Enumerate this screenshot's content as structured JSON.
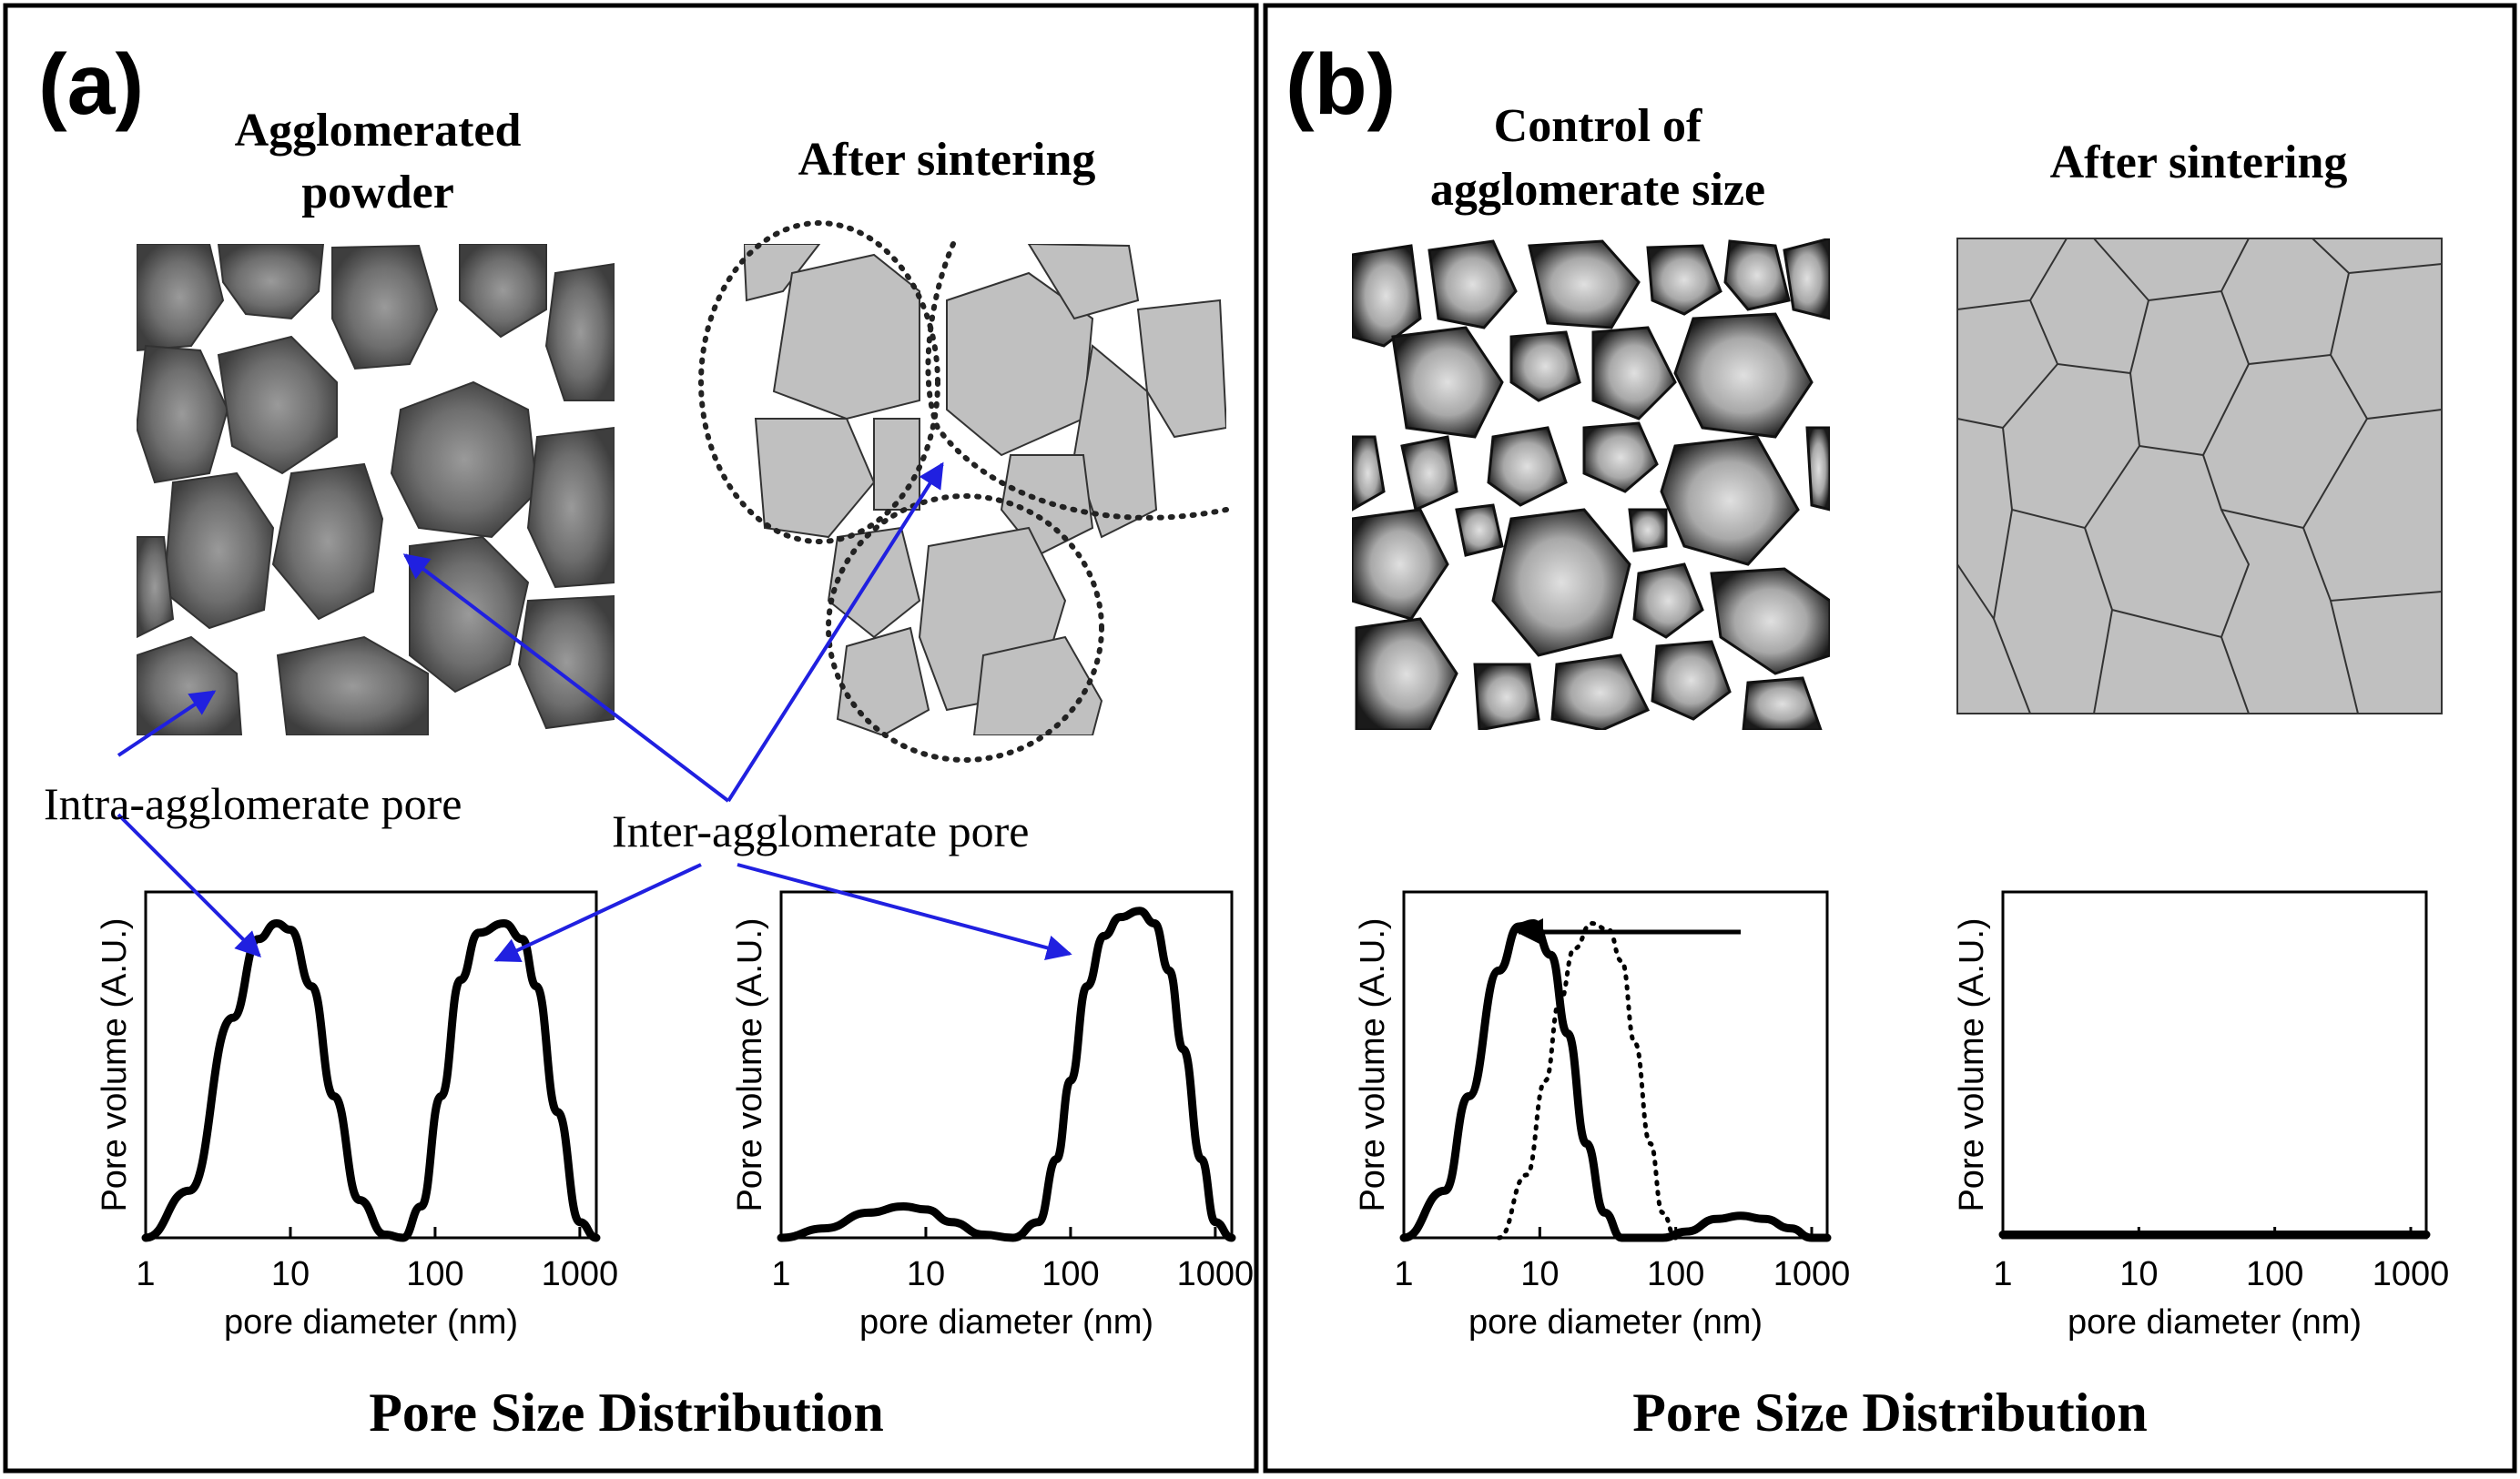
{
  "panel_a": {
    "label": "(a)",
    "title_left_line1": "Agglomerated",
    "title_left_line2": "powder",
    "title_right": "After sintering",
    "annotation_intra": "Intra-agglomerate pore",
    "annotation_inter": "Inter-agglomerate pore",
    "footer": "Pore Size Distribution"
  },
  "panel_b": {
    "label": "(b)",
    "title_left_line1": "Control of",
    "title_left_line2": "agglomerate size",
    "title_right": "After sintering",
    "footer": "Pore Size Distribution"
  },
  "colors": {
    "arrow": "#2020e0",
    "particle_dark": "#5a5a5a",
    "particle_light": "#bdbdbd",
    "grain": "#c0c0c0"
  },
  "chart_data": [
    {
      "id": "a-left",
      "type": "line",
      "ylabel": "Pore volume (A.U.)",
      "xlabel": "pore diameter (nm)",
      "xscale": "log",
      "xlim": [
        1,
        1300
      ],
      "ylim": [
        0,
        1.1
      ],
      "xticks": [
        "1",
        "10",
        "100",
        "1000"
      ],
      "series": [
        {
          "style": "solid",
          "x": [
            1,
            2,
            4,
            6,
            8,
            10,
            14,
            20,
            30,
            45,
            60,
            80,
            110,
            150,
            200,
            300,
            400,
            500,
            700,
            1000,
            1300
          ],
          "y": [
            0,
            0.15,
            0.7,
            0.95,
            1.0,
            0.98,
            0.8,
            0.45,
            0.12,
            0.01,
            0.0,
            0.1,
            0.45,
            0.82,
            0.97,
            1.0,
            0.95,
            0.8,
            0.4,
            0.05,
            0
          ]
        }
      ]
    },
    {
      "id": "a-right",
      "type": "line",
      "ylabel": "Pore volume (A.U.)",
      "xlabel": "pore diameter (nm)",
      "xscale": "log",
      "xlim": [
        1,
        1300
      ],
      "ylim": [
        0,
        1.1
      ],
      "xticks": [
        "1",
        "10",
        "100",
        "1000"
      ],
      "series": [
        {
          "style": "solid",
          "x": [
            1,
            2,
            4,
            7,
            10,
            15,
            25,
            40,
            60,
            80,
            100,
            130,
            170,
            220,
            300,
            380,
            480,
            600,
            800,
            1000,
            1300
          ],
          "y": [
            0,
            0.03,
            0.08,
            0.1,
            0.09,
            0.05,
            0.01,
            0.0,
            0.05,
            0.25,
            0.5,
            0.8,
            0.96,
            1.02,
            1.04,
            1.0,
            0.85,
            0.6,
            0.25,
            0.05,
            0
          ]
        }
      ]
    },
    {
      "id": "b-left",
      "type": "line",
      "ylabel": "Pore volume (A.U.)",
      "xlabel": "pore diameter (nm)",
      "xscale": "log",
      "xlim": [
        1,
        1300
      ],
      "ylim": [
        0,
        1.1
      ],
      "xticks": [
        "1",
        "10",
        "100",
        "1000"
      ],
      "series": [
        {
          "style": "solid",
          "x": [
            1,
            2,
            3,
            5,
            7,
            9,
            12,
            16,
            22,
            30,
            40,
            55,
            80,
            120,
            200,
            300,
            450,
            700,
            1000,
            1300
          ],
          "y": [
            0,
            0.15,
            0.45,
            0.85,
            0.99,
            1.0,
            0.9,
            0.65,
            0.3,
            0.08,
            0.0,
            0.0,
            0.0,
            0.02,
            0.06,
            0.07,
            0.06,
            0.03,
            0.0,
            0
          ]
        },
        {
          "style": "dotted",
          "x": [
            5,
            8,
            11,
            14,
            18,
            24,
            32,
            40,
            50,
            65,
            80,
            100
          ],
          "y": [
            0.0,
            0.2,
            0.5,
            0.75,
            0.92,
            1.0,
            0.98,
            0.88,
            0.62,
            0.3,
            0.08,
            0.0
          ]
        }
      ]
    },
    {
      "id": "b-right",
      "type": "line",
      "ylabel": "Pore volume (A.U.)",
      "xlabel": "pore diameter (nm)",
      "xscale": "log",
      "xlim": [
        1,
        1300
      ],
      "ylim": [
        0,
        1.1
      ],
      "xticks": [
        "1",
        "10",
        "100",
        "1000"
      ],
      "series": [
        {
          "style": "solid",
          "x": [
            1,
            1300
          ],
          "y": [
            0.01,
            0.01
          ]
        }
      ]
    }
  ]
}
